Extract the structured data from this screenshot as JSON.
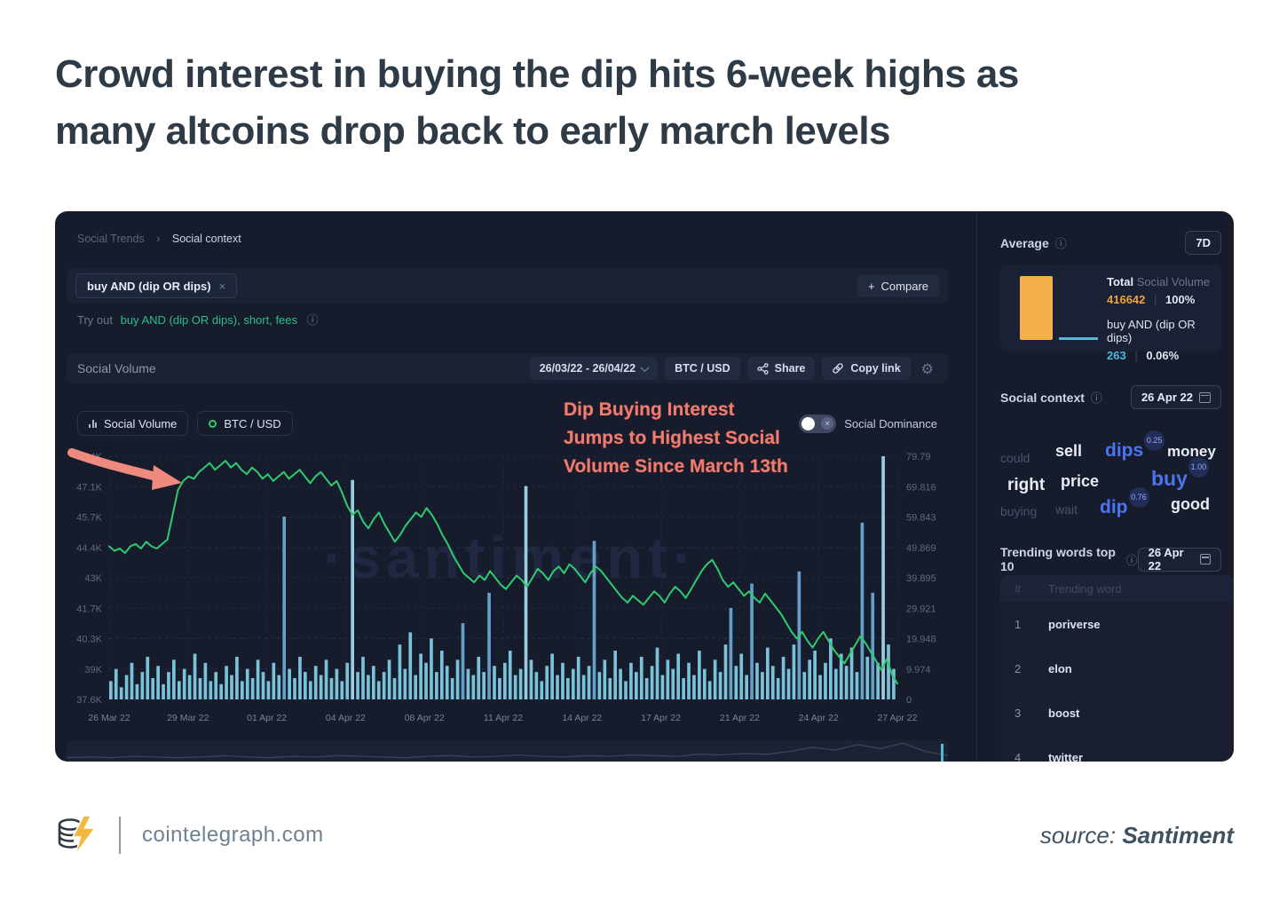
{
  "page": {
    "title_line1": "Crowd interest in buying the dip hits 6-week highs as",
    "title_line2": "many altcoins drop back to early march levels",
    "footer": {
      "site": "cointelegraph.com",
      "source_label": "source:",
      "source_name": "Santiment"
    }
  },
  "icons": {
    "info": "ⓘ",
    "gear": "⚙",
    "plus": "+",
    "close": "×",
    "separator": "|",
    "breadcrumb_sep": "›",
    "toggle_off": "×"
  },
  "dash": {
    "breadcrumb": {
      "parent": "Social Trends",
      "current": "Social context"
    },
    "tag": {
      "label": "buy AND (dip OR dips)"
    },
    "compare": {
      "label": "Compare"
    },
    "tryout": {
      "prefix": "Try out",
      "link": "buy AND (dip OR dips), short, fees"
    },
    "panel": {
      "title": "Social Volume",
      "date_range": "26/03/22 - 26/04/22",
      "pair": "BTC / USD",
      "share": "Share",
      "copy_link": "Copy link"
    },
    "legend": {
      "social_volume": "Social Volume",
      "pair": "BTC / USD",
      "social_dominance": "Social Dominance"
    },
    "annotation": {
      "line1": "Dip Buying Interest",
      "line2": "Jumps to Highest Social",
      "line3": "Volume Since March 13th"
    },
    "watermark": "·santiment·"
  },
  "chart_data": {
    "type": "bar",
    "title": "Social Volume — buy AND (dip OR dips) vs BTC/USD",
    "x_ticks": [
      "26 Mar 22",
      "29 Mar 22",
      "01 Apr 22",
      "04 Apr 22",
      "08 Apr 22",
      "11 Apr 22",
      "14 Apr 22",
      "17 Apr 22",
      "21 Apr 22",
      "24 Apr 22",
      "27 Apr 22"
    ],
    "left_axis": {
      "name": "BTC / USD",
      "ticks": [
        "48.4K",
        "47.1K",
        "45.7K",
        "44.4K",
        "43K",
        "41.7K",
        "40.3K",
        "39K",
        "37.6K"
      ],
      "range_k": [
        37.6,
        48.4
      ]
    },
    "right_axis": {
      "name": "Social Volume",
      "ticks": [
        "79.79",
        "69.816",
        "59.843",
        "49.869",
        "39.895",
        "29.921",
        "19.948",
        "9.974",
        "0"
      ],
      "range": [
        0,
        79.79
      ]
    },
    "legend_position": "top",
    "grid": "dashed",
    "series": [
      {
        "name": "Social Volume",
        "type": "bar",
        "axis": "right",
        "values": [
          6,
          10,
          4,
          8,
          12,
          5,
          9,
          14,
          7,
          11,
          5,
          9,
          13,
          6,
          10,
          8,
          15,
          7,
          12,
          6,
          9,
          5,
          11,
          8,
          14,
          6,
          10,
          7,
          13,
          9,
          6,
          12,
          8,
          60,
          10,
          7,
          14,
          9,
          6,
          11,
          8,
          13,
          7,
          10,
          6,
          12,
          72,
          9,
          14,
          8,
          11,
          6,
          9,
          13,
          7,
          18,
          10,
          22,
          8,
          15,
          12,
          20,
          9,
          16,
          11,
          7,
          13,
          25,
          10,
          8,
          14,
          9,
          35,
          11,
          7,
          12,
          16,
          8,
          10,
          70,
          13,
          9,
          6,
          11,
          15,
          8,
          12,
          7,
          10,
          14,
          8,
          11,
          52,
          9,
          13,
          7,
          16,
          10,
          6,
          12,
          9,
          14,
          7,
          11,
          17,
          8,
          13,
          10,
          15,
          7,
          12,
          8,
          16,
          10,
          6,
          13,
          9,
          18,
          30,
          11,
          15,
          8,
          38,
          12,
          9,
          17,
          11,
          7,
          14,
          10,
          18,
          42,
          9,
          13,
          16,
          8,
          12,
          20,
          10,
          15,
          11,
          17,
          9,
          58,
          14,
          35,
          12,
          79.8,
          18,
          10
        ]
      },
      {
        "name": "BTC / USD",
        "type": "line",
        "axis": "left",
        "values_k": [
          44.4,
          44.2,
          44.3,
          44.1,
          44.4,
          44.5,
          44.3,
          44.6,
          44.4,
          44.3,
          44.5,
          44.7,
          45.8,
          46.9,
          47.3,
          47.5,
          47.4,
          47.7,
          47.9,
          48.1,
          47.8,
          48.0,
          48.2,
          47.9,
          48.1,
          47.8,
          47.6,
          47.9,
          47.7,
          47.4,
          47.6,
          47.3,
          47.5,
          47.7,
          47.4,
          47.6,
          47.8,
          47.5,
          47.2,
          47.5,
          47.7,
          47.4,
          47.1,
          47.3,
          46.8,
          46.2,
          45.8,
          46.0,
          45.5,
          45.2,
          45.6,
          45.9,
          45.4,
          45.0,
          44.6,
          44.9,
          45.3,
          45.6,
          45.9,
          45.7,
          46.1,
          45.8,
          45.4,
          44.9,
          44.5,
          44.0,
          43.6,
          43.2,
          43.0,
          42.8,
          43.1,
          42.9,
          43.3,
          43.0,
          42.7,
          42.5,
          42.8,
          43.1,
          42.9,
          42.6,
          43.0,
          43.4,
          43.2,
          42.9,
          43.3,
          43.5,
          43.2,
          43.6,
          43.4,
          43.1,
          42.8,
          43.2,
          43.5,
          43.3,
          43.0,
          42.7,
          42.4,
          42.1,
          41.9,
          42.2,
          42.0,
          41.8,
          42.1,
          42.4,
          42.2,
          41.9,
          42.3,
          42.6,
          42.4,
          42.1,
          42.5,
          42.9,
          43.3,
          43.6,
          43.8,
          43.4,
          42.9,
          42.6,
          42.8,
          42.5,
          42.2,
          42.4,
          42.1,
          41.9,
          42.3,
          42.0,
          41.7,
          41.4,
          41.0,
          40.6,
          40.3,
          40.6,
          40.2,
          39.9,
          40.3,
          40.6,
          40.2,
          39.8,
          39.5,
          39.2,
          39.6,
          40.0,
          40.4,
          40.1,
          39.7,
          39.3,
          38.9,
          39.4,
          38.7,
          38.3
        ]
      }
    ],
    "navigator": [
      3,
      4,
      3,
      5,
      4,
      3,
      4,
      6,
      4,
      3,
      5,
      4,
      6,
      5,
      4,
      3,
      5,
      6,
      4,
      5,
      7,
      5,
      4,
      6,
      5,
      7,
      6,
      5,
      8,
      7,
      9,
      8,
      12,
      18,
      14,
      22,
      16,
      24,
      12,
      6
    ],
    "colors": {
      "line": "#2ecb70",
      "bar": "#7ecbe2",
      "bar_spike": "#68a6d0",
      "bar_peak": "#9fd6ea",
      "grid": "#242c44",
      "vgrid": "#1f2740",
      "axis_text": "#5e6880",
      "xaxis_text": "#7a8299"
    }
  },
  "sidebar": {
    "average": {
      "title": "Average",
      "range": "7D",
      "total_bold": "Total",
      "total_rest": "Social Volume",
      "total_value": "416642",
      "total_pct": "100%",
      "query_label": "buy AND (dip OR dips)",
      "query_value": "263",
      "query_pct": "0.06%"
    },
    "context": {
      "title": "Social context",
      "date": "26 Apr 22",
      "words": [
        {
          "text": "could"
        },
        {
          "text": "sell"
        },
        {
          "text": "dips",
          "badge": "0.25"
        },
        {
          "text": "money"
        },
        {
          "text": "right"
        },
        {
          "text": "price"
        },
        {
          "text": "buy",
          "badge": "1.00"
        },
        {
          "text": "buying"
        },
        {
          "text": "wait"
        },
        {
          "text": "dip",
          "badge": "0.76"
        },
        {
          "text": "good"
        }
      ]
    },
    "trending": {
      "title": "Trending words top 10",
      "date": "26 Apr 22",
      "columns": [
        "#",
        "Trending word"
      ],
      "rows": [
        [
          "1",
          "poriverse"
        ],
        [
          "2",
          "elon"
        ],
        [
          "3",
          "boost"
        ],
        [
          "4",
          "twitter"
        ]
      ]
    }
  }
}
